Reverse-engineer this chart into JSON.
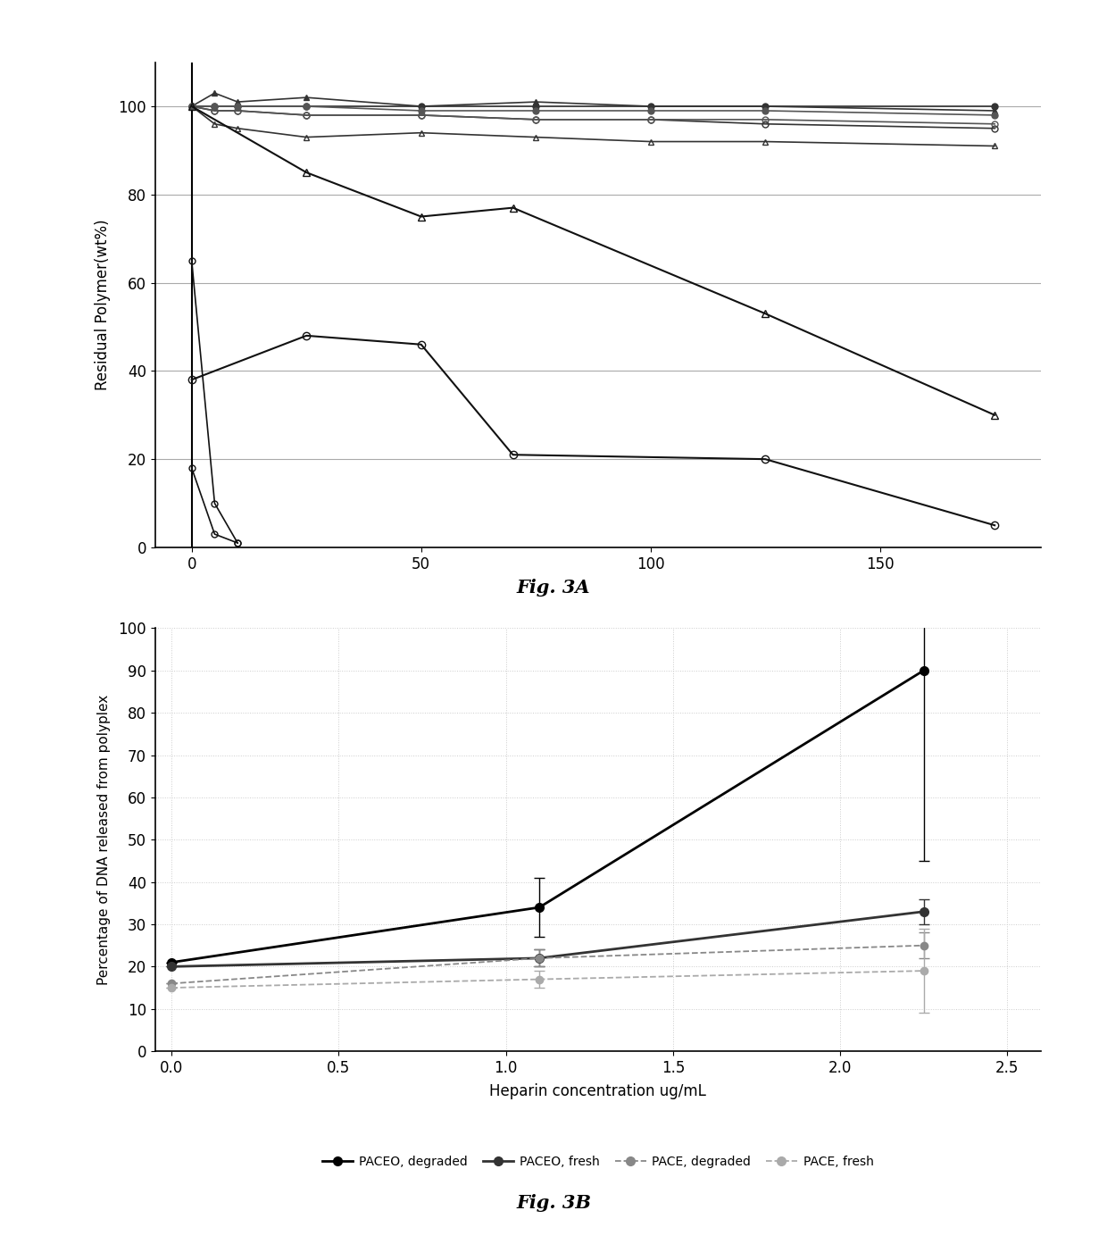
{
  "fig3a": {
    "ylabel": "Residual Polymer(wt%)",
    "xlabel": "",
    "ylim": [
      0,
      110
    ],
    "xlim": [
      -8,
      185
    ],
    "xticks": [
      0,
      50,
      100,
      150
    ],
    "yticks": [
      0,
      20,
      40,
      60,
      80,
      100
    ],
    "grid_color": "#aaaaaa",
    "grid_linestyle": "-",
    "series": [
      {
        "x": [
          0,
          5,
          10,
          25,
          50,
          75,
          100,
          125,
          175
        ],
        "y": [
          100,
          100,
          100,
          100,
          100,
          100,
          100,
          100,
          100
        ],
        "marker": "o",
        "color": "#333333",
        "markersize": 5,
        "linewidth": 1.2,
        "fillstyle": "full",
        "linestyle": "-"
      },
      {
        "x": [
          0,
          5,
          10,
          25,
          50,
          75,
          100,
          125,
          175
        ],
        "y": [
          100,
          99,
          99,
          98,
          98,
          97,
          97,
          96,
          95
        ],
        "marker": "o",
        "color": "#333333",
        "markersize": 5,
        "linewidth": 1.2,
        "fillstyle": "none",
        "linestyle": "-"
      },
      {
        "x": [
          0,
          5,
          10,
          25,
          50,
          75,
          100,
          125,
          175
        ],
        "y": [
          100,
          103,
          101,
          102,
          100,
          101,
          100,
          100,
          99
        ],
        "marker": "^",
        "color": "#333333",
        "markersize": 5,
        "linewidth": 1.2,
        "fillstyle": "full",
        "linestyle": "-"
      },
      {
        "x": [
          0,
          5,
          10,
          25,
          50,
          75,
          100,
          125,
          175
        ],
        "y": [
          100,
          96,
          95,
          93,
          94,
          93,
          92,
          92,
          91
        ],
        "marker": "^",
        "color": "#333333",
        "markersize": 5,
        "linewidth": 1.2,
        "fillstyle": "none",
        "linestyle": "-"
      },
      {
        "x": [
          0,
          5,
          10,
          25,
          50,
          75,
          100,
          125,
          175
        ],
        "y": [
          100,
          100,
          100,
          100,
          99,
          99,
          99,
          99,
          98
        ],
        "marker": "o",
        "color": "#555555",
        "markersize": 5,
        "linewidth": 1.2,
        "fillstyle": "full",
        "linestyle": "-"
      },
      {
        "x": [
          0,
          5,
          10,
          25,
          50,
          75,
          100,
          125,
          175
        ],
        "y": [
          100,
          99,
          99,
          98,
          98,
          97,
          97,
          97,
          96
        ],
        "marker": "o",
        "color": "#555555",
        "markersize": 5,
        "linewidth": 1.2,
        "fillstyle": "none",
        "linestyle": "-"
      },
      {
        "x": [
          0,
          25,
          50,
          70,
          125,
          175
        ],
        "y": [
          38,
          48,
          46,
          21,
          20,
          5
        ],
        "marker": "o",
        "color": "#111111",
        "markersize": 6,
        "linewidth": 1.5,
        "fillstyle": "none",
        "linestyle": "-"
      },
      {
        "x": [
          0,
          25,
          50,
          70,
          125,
          175
        ],
        "y": [
          100,
          85,
          75,
          77,
          53,
          30
        ],
        "marker": "^",
        "color": "#111111",
        "markersize": 6,
        "linewidth": 1.5,
        "fillstyle": "none",
        "linestyle": "-"
      },
      {
        "x": [
          0,
          5,
          10
        ],
        "y": [
          18,
          3,
          1
        ],
        "marker": "o",
        "color": "#111111",
        "markersize": 5,
        "linewidth": 1.2,
        "fillstyle": "none",
        "linestyle": "-"
      },
      {
        "x": [
          0,
          5,
          10
        ],
        "y": [
          65,
          10,
          1
        ],
        "marker": "o",
        "color": "#111111",
        "markersize": 5,
        "linewidth": 1.2,
        "fillstyle": "none",
        "linestyle": "-"
      }
    ],
    "figcaption": "Fig. 3A",
    "background_color": "#ffffff"
  },
  "fig3b": {
    "ylabel": "Percentage of DNA released from polyplex",
    "xlabel": "Heparin concentration ug/mL",
    "ylim": [
      0,
      100
    ],
    "xlim": [
      -0.05,
      2.6
    ],
    "xticks": [
      0.0,
      0.5,
      1.0,
      1.5,
      2.0,
      2.5
    ],
    "yticks": [
      0,
      10,
      20,
      30,
      40,
      50,
      60,
      70,
      80,
      90,
      100
    ],
    "grid_color": "#cccccc",
    "grid_linestyle": ":",
    "series": [
      {
        "label": "PACEO, degraded",
        "x": [
          0.0,
          1.1,
          2.25
        ],
        "y": [
          21,
          34,
          90
        ],
        "yerr": [
          0,
          7,
          45
        ],
        "marker": "o",
        "color": "#000000",
        "markersize": 7,
        "linewidth": 2.0,
        "fillstyle": "full",
        "linestyle": "-"
      },
      {
        "label": "PACEO, fresh",
        "x": [
          0.0,
          1.1,
          2.25
        ],
        "y": [
          20,
          22,
          33
        ],
        "yerr": [
          0,
          2,
          3
        ],
        "marker": "o",
        "color": "#333333",
        "markersize": 7,
        "linewidth": 2.0,
        "fillstyle": "full",
        "linestyle": "-"
      },
      {
        "label": "PACE, degraded",
        "x": [
          0.0,
          1.1,
          2.25
        ],
        "y": [
          16,
          22,
          25
        ],
        "yerr": [
          0,
          2,
          3
        ],
        "marker": "o",
        "color": "#888888",
        "markersize": 6,
        "linewidth": 1.3,
        "fillstyle": "full",
        "linestyle": "--"
      },
      {
        "label": "PACE, fresh",
        "x": [
          0.0,
          1.1,
          2.25
        ],
        "y": [
          15,
          17,
          19
        ],
        "yerr": [
          0,
          2,
          10
        ],
        "marker": "o",
        "color": "#aaaaaa",
        "markersize": 6,
        "linewidth": 1.3,
        "fillstyle": "full",
        "linestyle": "--"
      }
    ],
    "figcaption": "Fig. 3B",
    "background_color": "#ffffff",
    "legend_labels": [
      "PACEO, degraded",
      "PACEO, fresh",
      "PACE, degraded",
      "PACE, fresh"
    ]
  }
}
